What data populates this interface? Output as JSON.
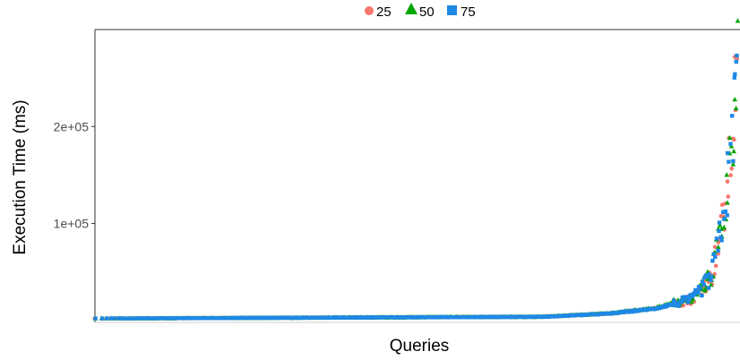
{
  "chart_data": {
    "type": "scatter",
    "title": "",
    "xlabel": "Queries",
    "ylabel": "Execution Time (ms)",
    "x_tick_labels": [],
    "y_ticks": [
      {
        "value": 100000,
        "label": "1e+05"
      },
      {
        "value": 200000,
        "label": "2e+05"
      }
    ],
    "xlim": [
      0,
      1000
    ],
    "ylim": [
      -2000,
      300000
    ],
    "grid": false,
    "legend": {
      "placement": "top"
    },
    "series": [
      {
        "name": "25",
        "color": "#F8766D",
        "marker": "circle",
        "curve": [
          [
            0,
            2000
          ],
          [
            700,
            3800
          ],
          [
            800,
            7000
          ],
          [
            870,
            12000
          ],
          [
            930,
            22000
          ],
          [
            960,
            45000
          ],
          [
            980,
            110000
          ],
          [
            990,
            170000
          ],
          [
            997,
            240000
          ],
          [
            1000,
            275000
          ]
        ]
      },
      {
        "name": "50",
        "color": "#00A500",
        "marker": "triangle",
        "curve": [
          [
            0,
            2000
          ],
          [
            700,
            3800
          ],
          [
            800,
            7200
          ],
          [
            870,
            12500
          ],
          [
            930,
            23000
          ],
          [
            960,
            47000
          ],
          [
            980,
            112000
          ],
          [
            990,
            175000
          ],
          [
            997,
            245000
          ],
          [
            1000,
            280000
          ]
        ]
      },
      {
        "name": "75",
        "color": "#1E88E5",
        "marker": "square",
        "curve": [
          [
            0,
            2000
          ],
          [
            700,
            3800
          ],
          [
            800,
            7000
          ],
          [
            870,
            12000
          ],
          [
            930,
            22000
          ],
          [
            960,
            45000
          ],
          [
            980,
            110000
          ],
          [
            990,
            170000
          ],
          [
            997,
            245000
          ],
          [
            1000,
            280000
          ]
        ]
      }
    ]
  }
}
